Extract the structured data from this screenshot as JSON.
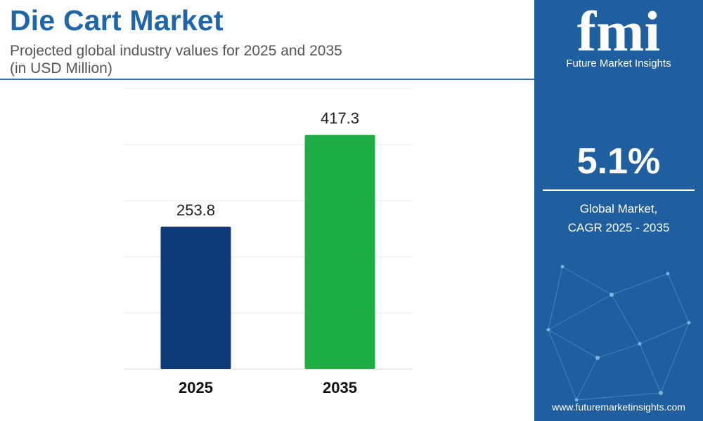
{
  "header": {
    "title": "Die Cart Market",
    "subtitle_line1": "Projected global industry values for 2025 and 2035",
    "subtitle_line2": "(in USD Million)"
  },
  "chart_data": {
    "type": "bar",
    "categories": [
      "2025",
      "2035"
    ],
    "values": [
      253.8,
      417.3
    ],
    "value_labels": [
      "253.8",
      "417.3"
    ],
    "colors": [
      "#0e3a78",
      "#1fad46"
    ],
    "ylim": [
      0,
      500
    ],
    "grid": true,
    "xlabel": "",
    "ylabel": ""
  },
  "sidebar": {
    "logo_text": "fmi",
    "logo_name": "Future Market Insights",
    "cagr_value": "5.1%",
    "cagr_label_line1": "Global Market,",
    "cagr_label_line2": "CAGR 2025 - 2035",
    "website": "www.futuremarketinsights.com"
  },
  "colors": {
    "title": "#1f66a8",
    "panel": "#1f5fa0"
  }
}
